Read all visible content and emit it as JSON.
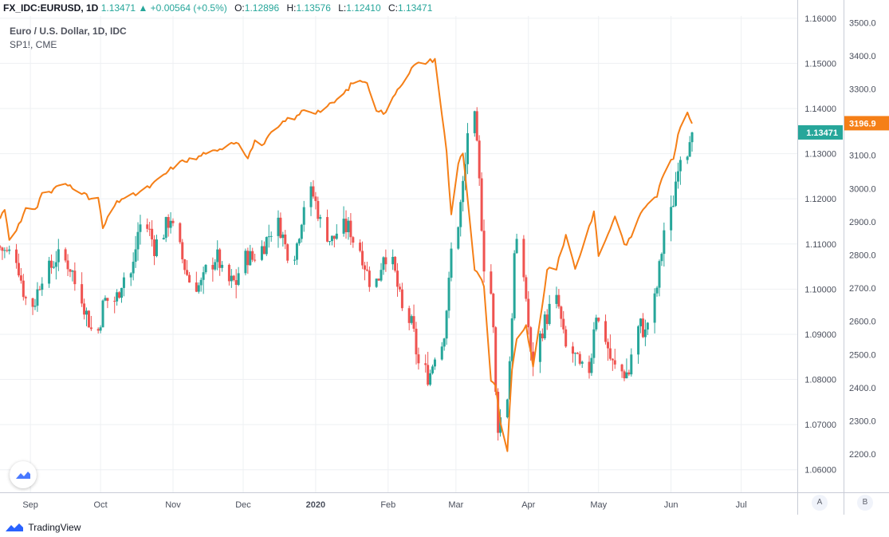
{
  "header": {
    "symbol": "FX_IDC:EURUSD, 1D",
    "last": "1.13471",
    "arrow": "▲",
    "change": "+0.00564 (+0.5%)",
    "o_label": "O:",
    "o_value": "1.12896",
    "h_label": "H:",
    "h_value": "1.13576",
    "l_label": "L:",
    "l_value": "1.12410",
    "c_label": "C:",
    "c_value": "1.13471"
  },
  "legend": {
    "main": "Euro / U.S. Dollar, 1D, IDC",
    "compare": "SP1!, CME"
  },
  "footer": {
    "brand": "TradingView",
    "scale_a": "A",
    "scale_b": "B"
  },
  "colors": {
    "up": "#26a69a",
    "down": "#ef5350",
    "compare_line": "#f57f17",
    "grid": "#eef0f3",
    "axis_text": "#4a4f5c"
  },
  "chart_data": {
    "type": "candlestick",
    "x_range": [
      "2019-08-19",
      "2020-07-25"
    ],
    "x_ticks": [
      {
        "label": "Sep",
        "date": "2019-09-01"
      },
      {
        "label": "Oct",
        "date": "2019-10-01"
      },
      {
        "label": "Nov",
        "date": "2019-11-01"
      },
      {
        "label": "Dec",
        "date": "2019-12-01"
      },
      {
        "label": "2020",
        "date": "2020-01-01"
      },
      {
        "label": "Feb",
        "date": "2020-02-01"
      },
      {
        "label": "Mar",
        "date": "2020-03-01"
      },
      {
        "label": "Apr",
        "date": "2020-04-01"
      },
      {
        "label": "May",
        "date": "2020-05-01"
      },
      {
        "label": "Jun",
        "date": "2020-06-01"
      },
      {
        "label": "Jul",
        "date": "2020-07-01"
      }
    ],
    "eurusd_axis": {
      "ylim": [
        1.055,
        1.1605
      ],
      "ticks": [
        "1.06000",
        "1.07000",
        "1.08000",
        "1.09000",
        "1.10000",
        "1.11000",
        "1.12000",
        "1.13000",
        "1.14000",
        "1.15000",
        "1.16000"
      ],
      "last_label": "1.13471",
      "last_value": 1.13471
    },
    "sp_axis": {
      "ylim": [
        2085,
        3520
      ],
      "ticks": [
        "2200.0",
        "2300.0",
        "2400.0",
        "2500.0",
        "2600.0",
        "2700.0",
        "2800.0",
        "2900.0",
        "3000.0",
        "3100.0",
        "3200.0",
        "3300.0",
        "3400.0",
        "3500.0"
      ],
      "last_label": "3196.9",
      "last_value": 3196.9
    },
    "eurusd_anchors": [
      [
        "2019-08-19",
        1.1095
      ],
      [
        "2019-08-23",
        1.1075
      ],
      [
        "2019-08-26",
        1.1085
      ],
      [
        "2019-08-30",
        1.0985
      ],
      [
        "2019-09-03",
        1.0965
      ],
      [
        "2019-09-06",
        1.1025
      ],
      [
        "2019-09-10",
        1.1045
      ],
      [
        "2019-09-13",
        1.1075
      ],
      [
        "2019-09-18",
        1.1055
      ],
      [
        "2019-09-23",
        1.0995
      ],
      [
        "2019-09-26",
        1.0935
      ],
      [
        "2019-09-30",
        1.0895
      ],
      [
        "2019-10-03",
        1.0975
      ],
      [
        "2019-10-08",
        1.0975
      ],
      [
        "2019-10-11",
        1.1025
      ],
      [
        "2019-10-15",
        1.1035
      ],
      [
        "2019-10-18",
        1.1145
      ],
      [
        "2019-10-22",
        1.1135
      ],
      [
        "2019-10-25",
        1.1085
      ],
      [
        "2019-10-30",
        1.1145
      ],
      [
        "2019-11-01",
        1.1165
      ],
      [
        "2019-11-05",
        1.1075
      ],
      [
        "2019-11-08",
        1.1025
      ],
      [
        "2019-11-13",
        1.1005
      ],
      [
        "2019-11-15",
        1.1025
      ],
      [
        "2019-11-20",
        1.1075
      ],
      [
        "2019-11-25",
        1.1015
      ],
      [
        "2019-11-29",
        1.1015
      ],
      [
        "2019-12-03",
        1.1075
      ],
      [
        "2019-12-06",
        1.1065
      ],
      [
        "2019-12-10",
        1.1095
      ],
      [
        "2019-12-13",
        1.1125
      ],
      [
        "2019-12-17",
        1.1145
      ],
      [
        "2019-12-20",
        1.1085
      ],
      [
        "2019-12-24",
        1.1085
      ],
      [
        "2019-12-27",
        1.1175
      ],
      [
        "2019-12-31",
        1.1215
      ],
      [
        "2020-01-03",
        1.1165
      ],
      [
        "2020-01-08",
        1.1105
      ],
      [
        "2020-01-13",
        1.1135
      ],
      [
        "2020-01-16",
        1.1135
      ],
      [
        "2020-01-21",
        1.1085
      ],
      [
        "2020-01-24",
        1.1025
      ],
      [
        "2020-01-28",
        1.1015
      ],
      [
        "2020-01-31",
        1.1095
      ],
      [
        "2020-02-04",
        1.1045
      ],
      [
        "2020-02-07",
        1.0965
      ],
      [
        "2020-02-12",
        1.0915
      ],
      [
        "2020-02-14",
        1.0845
      ],
      [
        "2020-02-19",
        1.0805
      ],
      [
        "2020-02-21",
        1.0845
      ],
      [
        "2020-02-25",
        1.0885
      ],
      [
        "2020-02-28",
        1.1035
      ],
      [
        "2020-03-03",
        1.1165
      ],
      [
        "2020-03-06",
        1.1295
      ],
      [
        "2020-03-09",
        1.1405
      ],
      [
        "2020-03-11",
        1.1275
      ],
      [
        "2020-03-13",
        1.1105
      ],
      [
        "2020-03-17",
        1.0975
      ],
      [
        "2020-03-19",
        1.0695
      ],
      [
        "2020-03-23",
        1.0725
      ],
      [
        "2020-03-25",
        1.0885
      ],
      [
        "2020-03-27",
        1.1135
      ],
      [
        "2020-03-31",
        1.1015
      ],
      [
        "2020-04-03",
        1.0815
      ],
      [
        "2020-04-07",
        1.0905
      ],
      [
        "2020-04-09",
        1.0935
      ],
      [
        "2020-04-14",
        1.0975
      ],
      [
        "2020-04-17",
        1.0875
      ],
      [
        "2020-04-21",
        1.0855
      ],
      [
        "2020-04-24",
        1.0815
      ],
      [
        "2020-04-28",
        1.0825
      ],
      [
        "2020-04-30",
        1.0955
      ],
      [
        "2020-05-04",
        1.0905
      ],
      [
        "2020-05-07",
        1.0835
      ],
      [
        "2020-05-12",
        1.0815
      ],
      [
        "2020-05-15",
        1.0815
      ],
      [
        "2020-05-19",
        1.0925
      ],
      [
        "2020-05-22",
        1.0895
      ],
      [
        "2020-05-26",
        1.0985
      ],
      [
        "2020-05-29",
        1.1105
      ],
      [
        "2020-06-02",
        1.1175
      ],
      [
        "2020-06-05",
        1.1305
      ],
      [
        "2020-06-08",
        1.1295
      ],
      [
        "2020-06-10",
        1.1365
      ]
    ],
    "sp_anchors": [
      [
        "2019-08-19",
        2910
      ],
      [
        "2019-08-21",
        2940
      ],
      [
        "2019-08-23",
        2850
      ],
      [
        "2019-08-26",
        2880
      ],
      [
        "2019-08-28",
        2900
      ],
      [
        "2019-08-30",
        2935
      ],
      [
        "2019-09-04",
        2945
      ],
      [
        "2019-09-06",
        2990
      ],
      [
        "2019-09-10",
        2990
      ],
      [
        "2019-09-13",
        3010
      ],
      [
        "2019-09-18",
        3010
      ],
      [
        "2019-09-23",
        2990
      ],
      [
        "2019-09-26",
        2970
      ],
      [
        "2019-09-30",
        2970
      ],
      [
        "2019-10-02",
        2880
      ],
      [
        "2019-10-07",
        2950
      ],
      [
        "2019-10-10",
        2970
      ],
      [
        "2019-10-15",
        2980
      ],
      [
        "2019-10-18",
        2990
      ],
      [
        "2019-10-23",
        3010
      ],
      [
        "2019-10-28",
        3040
      ],
      [
        "2019-11-01",
        3065
      ],
      [
        "2019-11-06",
        3085
      ],
      [
        "2019-11-11",
        3090
      ],
      [
        "2019-11-15",
        3110
      ],
      [
        "2019-11-20",
        3110
      ],
      [
        "2019-11-25",
        3140
      ],
      [
        "2019-11-29",
        3140
      ],
      [
        "2019-12-03",
        3095
      ],
      [
        "2019-12-06",
        3140
      ],
      [
        "2019-12-10",
        3135
      ],
      [
        "2019-12-13",
        3165
      ],
      [
        "2019-12-17",
        3190
      ],
      [
        "2019-12-20",
        3210
      ],
      [
        "2019-12-24",
        3215
      ],
      [
        "2019-12-27",
        3240
      ],
      [
        "2019-12-31",
        3230
      ],
      [
        "2020-01-03",
        3235
      ],
      [
        "2020-01-08",
        3255
      ],
      [
        "2020-01-13",
        3285
      ],
      [
        "2020-01-17",
        3320
      ],
      [
        "2020-01-22",
        3325
      ],
      [
        "2020-01-24",
        3300
      ],
      [
        "2020-01-27",
        3240
      ],
      [
        "2020-01-31",
        3225
      ],
      [
        "2020-02-04",
        3290
      ],
      [
        "2020-02-07",
        3320
      ],
      [
        "2020-02-12",
        3370
      ],
      [
        "2020-02-14",
        3375
      ],
      [
        "2020-02-19",
        3385
      ],
      [
        "2020-02-21",
        3390
      ],
      [
        "2020-02-24",
        3225
      ],
      [
        "2020-02-26",
        3110
      ],
      [
        "2020-02-28",
        2920
      ],
      [
        "2020-03-02",
        3080
      ],
      [
        "2020-03-04",
        3110
      ],
      [
        "2020-03-06",
        2970
      ],
      [
        "2020-03-09",
        2750
      ],
      [
        "2020-03-11",
        2740
      ],
      [
        "2020-03-13",
        2700
      ],
      [
        "2020-03-16",
        2420
      ],
      [
        "2020-03-18",
        2400
      ],
      [
        "2020-03-20",
        2300
      ],
      [
        "2020-03-23",
        2210
      ],
      [
        "2020-03-25",
        2460
      ],
      [
        "2020-03-27",
        2540
      ],
      [
        "2020-03-31",
        2590
      ],
      [
        "2020-04-03",
        2460
      ],
      [
        "2020-04-07",
        2650
      ],
      [
        "2020-04-09",
        2760
      ],
      [
        "2020-04-13",
        2760
      ],
      [
        "2020-04-17",
        2860
      ],
      [
        "2020-04-21",
        2760
      ],
      [
        "2020-04-24",
        2820
      ],
      [
        "2020-04-29",
        2930
      ],
      [
        "2020-05-01",
        2800
      ],
      [
        "2020-05-05",
        2860
      ],
      [
        "2020-05-08",
        2920
      ],
      [
        "2020-05-12",
        2830
      ],
      [
        "2020-05-15",
        2850
      ],
      [
        "2020-05-19",
        2930
      ],
      [
        "2020-05-22",
        2960
      ],
      [
        "2020-05-26",
        2980
      ],
      [
        "2020-05-29",
        3050
      ],
      [
        "2020-06-02",
        3090
      ],
      [
        "2020-06-05",
        3190
      ],
      [
        "2020-06-08",
        3230
      ],
      [
        "2020-06-10",
        3200
      ]
    ]
  }
}
